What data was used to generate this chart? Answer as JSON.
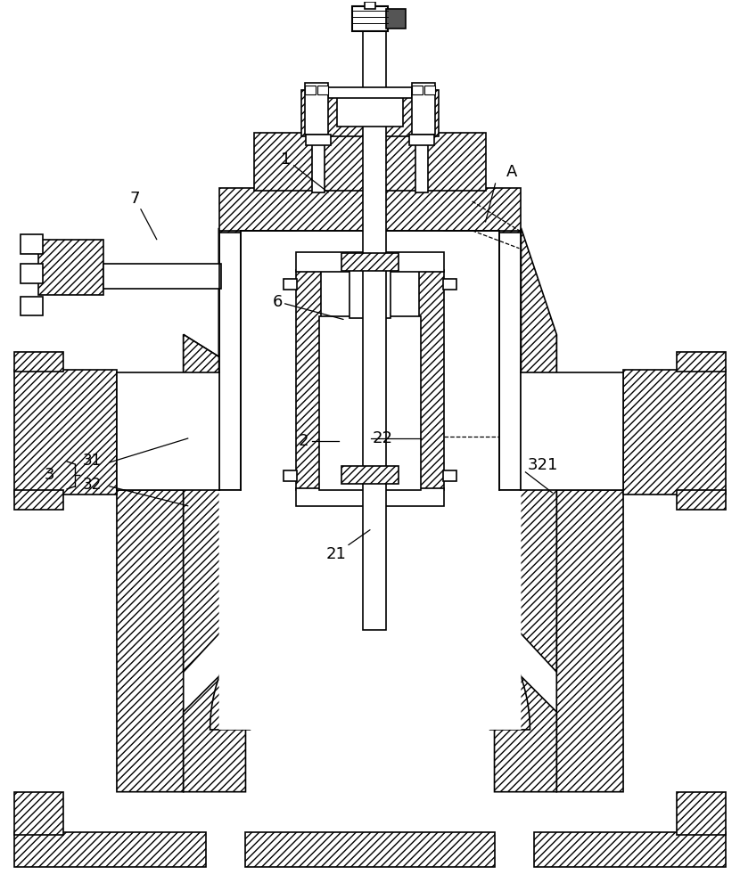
{
  "background_color": "#ffffff",
  "line_color": "#000000",
  "hatch": "////",
  "font_size": 13,
  "fig_width": 8.3,
  "fig_height": 10.0,
  "dpi": 100
}
